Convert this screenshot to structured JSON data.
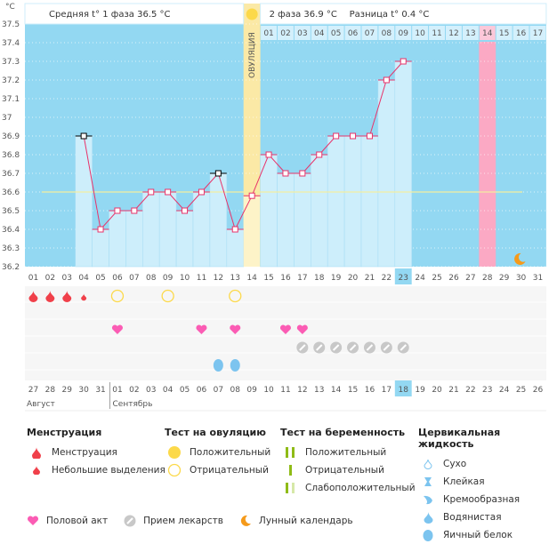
{
  "header": {
    "phase1_label": "Средняя t° 1 фаза",
    "phase1_value": "36.5 °C",
    "phase2_label": "2 фаза",
    "phase2_value": "36.9 °C",
    "diff_label": "Разница t°",
    "diff_value": "0.4 °C",
    "unit": "°C",
    "ovulation_label": "ОВУЛЯЦИЯ"
  },
  "chart_data": {
    "type": "line",
    "title": "",
    "ylabel": "°C",
    "ylim": [
      36.2,
      37.5
    ],
    "yticks": [
      "36.2",
      "36.3",
      "36.4",
      "36.5",
      "36.6",
      "36.7",
      "36.8",
      "36.9",
      "37",
      "37.1",
      "37.2",
      "37.3",
      "37.4",
      "37.5"
    ],
    "cycle_days": [
      "01",
      "02",
      "03",
      "04",
      "05",
      "06",
      "07",
      "08",
      "09",
      "10",
      "11",
      "12",
      "13",
      "14",
      "15",
      "16",
      "17",
      "18",
      "19",
      "20",
      "21",
      "22",
      "23",
      "24",
      "25",
      "26",
      "27",
      "28",
      "29",
      "30",
      "31"
    ],
    "post_ovulation_days": [
      "01",
      "02",
      "03",
      "04",
      "05",
      "06",
      "07",
      "08",
      "09",
      "10",
      "11",
      "12",
      "13",
      "14",
      "15",
      "16",
      "17"
    ],
    "temperatures": [
      null,
      null,
      null,
      36.9,
      36.4,
      36.5,
      36.5,
      36.6,
      36.6,
      36.5,
      36.6,
      36.7,
      36.4,
      36.58,
      36.8,
      36.7,
      36.7,
      36.8,
      36.9,
      36.9,
      36.9,
      37.2,
      37.3,
      null,
      null,
      null,
      null,
      null,
      null,
      null,
      null
    ],
    "excluded_points": [
      4,
      12
    ],
    "coverline": 36.6,
    "ovulation_day": 14,
    "current_day": 23,
    "expected_period_day": 28,
    "calendar_dates": [
      "27",
      "28",
      "29",
      "30",
      "31",
      "01",
      "02",
      "03",
      "04",
      "05",
      "06",
      "07",
      "08",
      "09",
      "10",
      "11",
      "12",
      "13",
      "14",
      "15",
      "16",
      "17",
      "18",
      "19",
      "20",
      "21",
      "22",
      "23",
      "24",
      "25",
      "26"
    ],
    "weekend_indices": [
      2,
      3,
      9,
      10,
      16,
      17,
      23,
      24,
      30
    ],
    "today_index": 22,
    "months": [
      {
        "label": "Август",
        "start": 0
      },
      {
        "label": "Сентябрь",
        "start": 5
      }
    ],
    "markers": {
      "menstruation": [
        1,
        2,
        3
      ],
      "spotting": [
        4
      ],
      "ovulation_test_negative": [
        6,
        9,
        13
      ],
      "intercourse": [
        6,
        11,
        13,
        16,
        17
      ],
      "medication": [
        17,
        18,
        19,
        20,
        21,
        22,
        23
      ],
      "cervical_egg_white": [
        12,
        13
      ],
      "moon": [
        30
      ]
    }
  },
  "colors": {
    "bg_blue": "#93d8f2",
    "bar_light": "#cdeefb",
    "ovulation": "#fbe9a6",
    "period_pink": "#fba9c4",
    "line": "#e8336a",
    "coverline": "#f4eda0",
    "weekend": "#e8336a",
    "today": "#93d8f2"
  },
  "legend": {
    "menstruation": {
      "title": "Менструация",
      "items": [
        "Менструация",
        "Небольшие выделения"
      ]
    },
    "ovulation_test": {
      "title": "Тест на овуляцию",
      "items": [
        "Положительный",
        "Отрицательный"
      ]
    },
    "pregnancy_test": {
      "title": "Тест на беременность",
      "items": [
        "Положительный",
        "Отрицательный",
        "Слабоположительный"
      ]
    },
    "cervical": {
      "title": "Цервикальная жидкость",
      "items": [
        "Сухо",
        "Клейкая",
        "Кремообразная",
        "Водянистая",
        "Яичный белок"
      ]
    },
    "other": [
      "Половой акт",
      "Прием лекарств",
      "Лунный календарь"
    ]
  }
}
